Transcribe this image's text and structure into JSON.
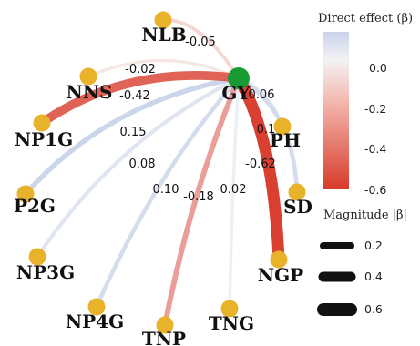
{
  "diagram": {
    "hub": {
      "label": "GY",
      "color": "#1a9a33"
    },
    "node_color": "#e8b22a",
    "nodes": [
      {
        "id": "NLB",
        "label": "NLB"
      },
      {
        "id": "NNS",
        "label": "NNS"
      },
      {
        "id": "NP1G",
        "label": "NP1G"
      },
      {
        "id": "P2G",
        "label": "P2G"
      },
      {
        "id": "NP3G",
        "label": "NP3G"
      },
      {
        "id": "NP4G",
        "label": "NP4G"
      },
      {
        "id": "TNP",
        "label": "TNP"
      },
      {
        "id": "TNG",
        "label": "TNG"
      },
      {
        "id": "NGP",
        "label": "NGP"
      },
      {
        "id": "SD",
        "label": "SD"
      },
      {
        "id": "PH",
        "label": "PH"
      }
    ],
    "edges": [
      {
        "from": "NLB",
        "beta": -0.05,
        "label": "-0.05"
      },
      {
        "from": "NNS",
        "beta": -0.02,
        "label": "-0.02"
      },
      {
        "from": "NP1G",
        "beta": -0.42,
        "label": "-0.42"
      },
      {
        "from": "P2G",
        "beta": 0.15,
        "label": "0.15"
      },
      {
        "from": "NP3G",
        "beta": 0.08,
        "label": "0.08"
      },
      {
        "from": "NP4G",
        "beta": 0.1,
        "label": "0.10"
      },
      {
        "from": "TNP",
        "beta": -0.18,
        "label": "-0.18"
      },
      {
        "from": "TNG",
        "beta": 0.02,
        "label": "0.02"
      },
      {
        "from": "NGP",
        "beta": -0.62,
        "label": "-0.62"
      },
      {
        "from": "PH",
        "beta": 0.06,
        "label": "0.06"
      },
      {
        "from": "SD",
        "beta": 0.1,
        "label": "0.1"
      }
    ]
  },
  "legend": {
    "color_title": "Direct effect (β)",
    "color_ticks": [
      "0.0",
      "-0.2",
      "-0.4",
      "-0.6"
    ],
    "color_scale": {
      "pos": "#c7d2e8",
      "zero": "#f7f7f7",
      "neg": "#d7301f"
    },
    "size_title": "Magnitude |β|",
    "size_items": [
      "0.2",
      "0.4",
      "0.6"
    ]
  }
}
